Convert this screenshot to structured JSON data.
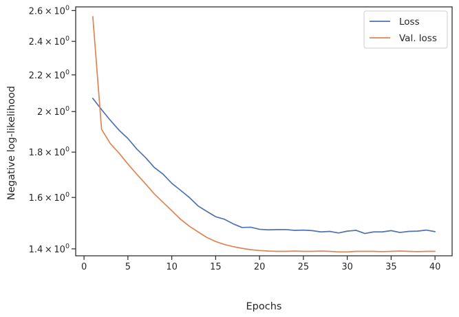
{
  "chart_data": {
    "type": "line",
    "xlabel": "Epochs",
    "ylabel": "Negative log-likelihood",
    "yscale": "log",
    "xlim": [
      -0.95,
      41.95
    ],
    "ylim": [
      1.375,
      2.625
    ],
    "xticks": [
      0,
      5,
      10,
      15,
      20,
      25,
      30,
      35,
      40
    ],
    "yticks": [
      {
        "value": 1.4,
        "mantissa": "1.4",
        "exponent": "0"
      },
      {
        "value": 1.6,
        "mantissa": "1.6",
        "exponent": "0"
      },
      {
        "value": 1.8,
        "mantissa": "1.8",
        "exponent": "0"
      },
      {
        "value": 2.0,
        "mantissa": "2",
        "exponent": "0"
      },
      {
        "value": 2.2,
        "mantissa": "2.2",
        "exponent": "0"
      },
      {
        "value": 2.4,
        "mantissa": "2.4",
        "exponent": "0"
      },
      {
        "value": 2.6,
        "mantissa": "2.6",
        "exponent": "0"
      }
    ],
    "tick_times": "×",
    "tick_base": "10",
    "grid": false,
    "legend_position": "top-right",
    "x": [
      1,
      2,
      3,
      4,
      5,
      6,
      7,
      8,
      9,
      10,
      11,
      12,
      13,
      14,
      15,
      16,
      17,
      18,
      19,
      20,
      21,
      22,
      23,
      24,
      25,
      26,
      27,
      28,
      29,
      30,
      31,
      32,
      33,
      34,
      35,
      36,
      37,
      38,
      39,
      40
    ],
    "series": [
      {
        "name": "Loss",
        "color": "#4c72b0",
        "values": [
          2.07,
          2.01,
          1.955,
          1.905,
          1.865,
          1.815,
          1.775,
          1.73,
          1.7,
          1.66,
          1.63,
          1.6,
          1.565,
          1.543,
          1.522,
          1.512,
          1.494,
          1.48,
          1.481,
          1.473,
          1.471,
          1.472,
          1.472,
          1.469,
          1.47,
          1.468,
          1.463,
          1.465,
          1.459,
          1.466,
          1.469,
          1.457,
          1.463,
          1.463,
          1.468,
          1.461,
          1.465,
          1.466,
          1.47,
          1.464
        ]
      },
      {
        "name": "Val. loss",
        "color": "#dd8452",
        "values": [
          2.56,
          1.91,
          1.84,
          1.795,
          1.745,
          1.7,
          1.658,
          1.615,
          1.58,
          1.546,
          1.512,
          1.485,
          1.463,
          1.442,
          1.427,
          1.416,
          1.408,
          1.402,
          1.397,
          1.394,
          1.392,
          1.391,
          1.391,
          1.392,
          1.391,
          1.391,
          1.392,
          1.391,
          1.389,
          1.389,
          1.391,
          1.391,
          1.391,
          1.39,
          1.391,
          1.392,
          1.391,
          1.39,
          1.391,
          1.391
        ]
      }
    ]
  }
}
